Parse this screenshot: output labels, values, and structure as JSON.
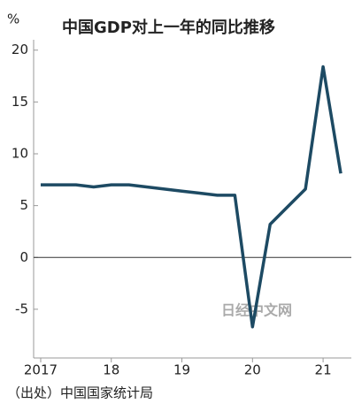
{
  "chart_data": {
    "type": "line",
    "title": "中国GDP对上一年的同比推移",
    "y_unit": "%",
    "source": "（出处）中国国家统计局",
    "watermark": "日经中文网",
    "x": [
      2017,
      2017.25,
      2017.5,
      2017.75,
      2018,
      2018.25,
      2018.5,
      2018.75,
      2019,
      2019.25,
      2019.5,
      2019.75,
      2020,
      2020.25,
      2020.5,
      2020.75,
      2021,
      2021.25
    ],
    "series": [
      {
        "name": "GDP",
        "color": "#1d4a63",
        "values": [
          7.0,
          7.0,
          7.0,
          6.8,
          7.0,
          7.0,
          6.8,
          6.6,
          6.4,
          6.2,
          6.0,
          6.0,
          -6.7,
          3.2,
          4.9,
          6.6,
          18.4,
          8.1
        ]
      }
    ],
    "xlim": [
      2016.9,
      2021.4
    ],
    "xticks": [
      {
        "value": 2017,
        "label": "2017"
      },
      {
        "value": 2018,
        "label": "18"
      },
      {
        "value": 2019,
        "label": "19"
      },
      {
        "value": 2020,
        "label": "20"
      },
      {
        "value": 2021,
        "label": "21"
      }
    ],
    "ylim": [
      -9.7,
      21
    ],
    "yticks": [
      20,
      15,
      10,
      5,
      0,
      -5
    ],
    "hline": 0
  }
}
